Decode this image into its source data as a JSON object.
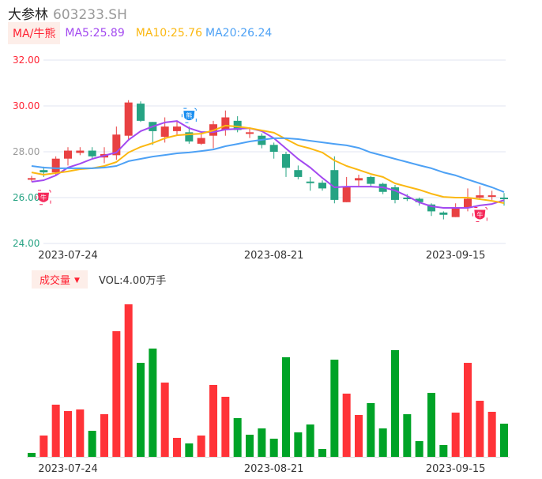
{
  "header": {
    "name": "大参林",
    "code": "603233.SH"
  },
  "legend": {
    "ma_button": "MA/牛熊",
    "ma5": "MA5:25.89",
    "ma10": "MA10:25.76",
    "ma20": "MA20:26.24"
  },
  "volume_header": {
    "button": "成交量",
    "value": "VOL:4.00万手"
  },
  "colors": {
    "up": "#e84142",
    "down": "#26a383",
    "vol_up": "#ff3338",
    "vol_down": "#00a327",
    "ma5": "#a349f0",
    "ma10": "#fbb812",
    "ma20": "#4da1f5",
    "grid": "#e1e6f0"
  },
  "chart_data": [
    {
      "type": "candlestick",
      "title": "大参林 603233.SH",
      "ylim": [
        24,
        32
      ],
      "yticks": [
        {
          "value": 32,
          "label": "32.00",
          "color": "#f23"
        },
        {
          "value": 30,
          "label": "30.00",
          "color": "#f23"
        },
        {
          "value": 28,
          "label": "28.00",
          "color": "#999"
        },
        {
          "value": 26,
          "label": "26.00",
          "color": "#26a383"
        },
        {
          "value": 24,
          "label": "24.00",
          "color": "#26a383"
        }
      ],
      "xticks": [
        {
          "index": 3,
          "label": "2023-07-24"
        },
        {
          "index": 20,
          "label": "2023-08-21"
        },
        {
          "index": 35,
          "label": "2023-09-15"
        }
      ],
      "ohlc": [
        [
          26.78,
          26.85,
          26.95,
          26.7
        ],
        [
          27.2,
          27.1,
          27.35,
          26.9
        ],
        [
          27.1,
          27.7,
          27.8,
          26.95
        ],
        [
          27.7,
          28.05,
          28.2,
          27.4
        ],
        [
          27.95,
          28.05,
          28.2,
          27.85
        ],
        [
          28.05,
          27.8,
          28.2,
          27.7
        ],
        [
          27.75,
          27.9,
          28.2,
          27.5
        ],
        [
          27.85,
          28.75,
          29.1,
          27.65
        ],
        [
          28.7,
          30.15,
          30.25,
          28.55
        ],
        [
          30.1,
          29.35,
          30.2,
          29.3
        ],
        [
          29.3,
          28.9,
          29.3,
          28.3
        ],
        [
          28.65,
          29.1,
          29.5,
          28.4
        ],
        [
          28.9,
          29.1,
          29.35,
          28.7
        ],
        [
          28.85,
          28.45,
          29.1,
          28.35
        ],
        [
          28.35,
          28.6,
          28.8,
          28.3
        ],
        [
          28.7,
          29.2,
          29.35,
          28.15
        ],
        [
          28.95,
          29.5,
          29.8,
          28.7
        ],
        [
          29.35,
          28.95,
          29.55,
          28.85
        ],
        [
          28.8,
          28.85,
          29.0,
          28.6
        ],
        [
          28.7,
          28.3,
          28.8,
          28.15
        ],
        [
          28.3,
          28.0,
          28.4,
          27.7
        ],
        [
          27.9,
          27.3,
          28.0,
          26.9
        ],
        [
          27.2,
          26.9,
          27.4,
          26.8
        ],
        [
          26.7,
          26.65,
          26.9,
          26.3
        ],
        [
          26.65,
          26.4,
          26.75,
          26.3
        ],
        [
          27.2,
          25.9,
          27.8,
          25.75
        ],
        [
          25.8,
          26.45,
          26.9,
          25.8
        ],
        [
          26.75,
          26.85,
          27.0,
          26.45
        ],
        [
          26.9,
          26.6,
          26.95,
          26.5
        ],
        [
          26.6,
          26.25,
          26.65,
          26.15
        ],
        [
          26.45,
          25.9,
          26.55,
          25.75
        ],
        [
          26.0,
          25.95,
          26.15,
          25.85
        ],
        [
          25.95,
          25.8,
          26.0,
          25.65
        ],
        [
          25.7,
          25.4,
          25.75,
          25.2
        ],
        [
          25.35,
          25.25,
          25.4,
          25.05
        ],
        [
          25.15,
          25.55,
          25.75,
          25.15
        ],
        [
          25.55,
          25.95,
          26.4,
          25.4
        ],
        [
          26.0,
          26.1,
          26.5,
          25.95
        ],
        [
          26.05,
          26.1,
          26.3,
          25.9
        ],
        [
          26.0,
          25.95,
          26.2,
          25.65
        ]
      ],
      "series": [
        {
          "name": "MA5",
          "values": [
            26.69,
            26.76,
            26.97,
            27.31,
            27.48,
            27.69,
            27.83,
            27.97,
            28.52,
            28.9,
            29.1,
            29.28,
            29.34,
            29.03,
            28.86,
            28.86,
            28.97,
            29.0,
            29.03,
            28.9,
            28.59,
            28.14,
            27.69,
            27.31,
            26.86,
            26.45,
            26.48,
            26.48,
            26.48,
            26.45,
            26.31,
            26.07,
            25.79,
            25.62,
            25.55,
            25.55,
            25.55,
            25.66,
            25.72,
            25.89
          ]
        },
        {
          "name": "MA10",
          "values": [
            27.1,
            27.0,
            27.07,
            27.14,
            27.24,
            27.28,
            27.38,
            27.55,
            27.97,
            28.21,
            28.38,
            28.59,
            28.72,
            28.76,
            28.79,
            28.93,
            29.14,
            29.1,
            29.03,
            28.93,
            28.83,
            28.55,
            28.28,
            28.14,
            27.97,
            27.62,
            27.38,
            27.21,
            27.03,
            26.9,
            26.62,
            26.48,
            26.34,
            26.17,
            26.03,
            26.0,
            26.0,
            25.93,
            25.86,
            25.76
          ]
        },
        {
          "name": "MA20",
          "values": [
            27.38,
            27.31,
            27.28,
            27.28,
            27.28,
            27.28,
            27.31,
            27.38,
            27.59,
            27.69,
            27.79,
            27.86,
            27.93,
            27.97,
            28.03,
            28.1,
            28.24,
            28.34,
            28.45,
            28.52,
            28.59,
            28.59,
            28.55,
            28.48,
            28.41,
            28.34,
            28.28,
            28.17,
            27.97,
            27.83,
            27.69,
            27.55,
            27.41,
            27.28,
            27.1,
            26.97,
            26.79,
            26.62,
            26.45,
            26.24
          ]
        }
      ],
      "signals": [
        {
          "index": 0,
          "type": "bull",
          "label": "牛"
        },
        {
          "index": 13,
          "type": "bear",
          "label": "熊"
        },
        {
          "index": 37,
          "type": "bull",
          "label": "牛"
        }
      ]
    },
    {
      "type": "bar",
      "title": "成交量",
      "unit": "万手",
      "values": [
        0.48,
        2.57,
        6.29,
        5.52,
        5.71,
        3.14,
        5.14,
        15.14,
        18.38,
        11.33,
        13.05,
        8.95,
        2.29,
        1.62,
        2.57,
        8.67,
        7.24,
        4.67,
        2.67,
        3.43,
        2.19,
        12.0,
        2.95,
        3.9,
        0.95,
        11.71,
        7.62,
        5.05,
        6.48,
        3.43,
        12.86,
        5.14,
        1.9,
        7.71,
        1.43,
        5.33,
        11.33,
        6.76,
        5.43,
        4.0
      ],
      "up": [
        0,
        1,
        1,
        1,
        1,
        0,
        1,
        1,
        1,
        0,
        0,
        1,
        1,
        0,
        1,
        1,
        1,
        0,
        0,
        0,
        0,
        0,
        0,
        0,
        0,
        0,
        1,
        1,
        0,
        0,
        0,
        0,
        0,
        0,
        0,
        1,
        1,
        1,
        1,
        0
      ],
      "xticks": [
        {
          "index": 3,
          "label": "2023-07-24"
        },
        {
          "index": 20,
          "label": "2023-08-21"
        },
        {
          "index": 35,
          "label": "2023-09-15"
        }
      ]
    }
  ]
}
